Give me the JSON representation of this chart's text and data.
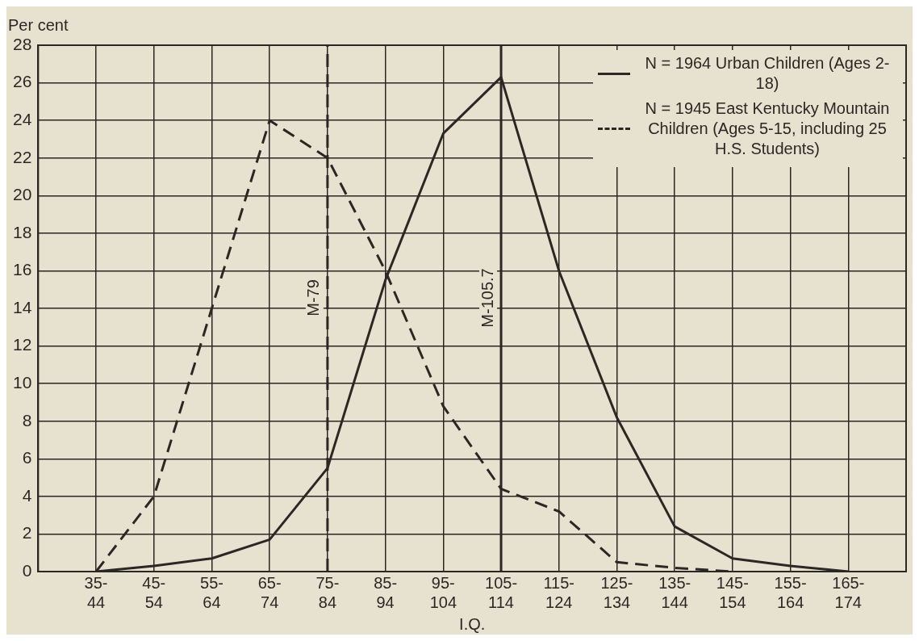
{
  "chart_data": {
    "type": "line",
    "xlabel": "I.Q.",
    "ylabel": "Per cent",
    "categories": [
      "35-44",
      "45-54",
      "55-64",
      "65-74",
      "75-84",
      "85-94",
      "95-104",
      "105-114",
      "115-124",
      "125-134",
      "135-144",
      "145-154",
      "155-164",
      "165-174"
    ],
    "ylim": [
      0,
      28
    ],
    "yticks": [
      0,
      2,
      4,
      6,
      8,
      10,
      12,
      14,
      16,
      18,
      20,
      22,
      24,
      26,
      28
    ],
    "series": [
      {
        "name": "N = 1964 Urban Children (Ages 2-18)",
        "color": "#2b2724",
        "line_style": "solid",
        "values": [
          0,
          0.3,
          0.7,
          1.7,
          5.5,
          15.5,
          23.3,
          26.3,
          16,
          8.2,
          2.4,
          0.7,
          0.3,
          0
        ]
      },
      {
        "name": "N = 1945 East Kentucky Mountain Children (Ages 5-15, including 25 H.S. Students)",
        "color": "#2b2724",
        "line_style": "dashed",
        "values": [
          0,
          4,
          14,
          24,
          22,
          16,
          8.8,
          4.4,
          3.2,
          0.5,
          0.2,
          0,
          null,
          null
        ]
      }
    ],
    "ref_lines": [
      {
        "axis": "x",
        "value": "75-84",
        "label": "M-79",
        "line_style": "dashed",
        "color": "#2b2724"
      },
      {
        "axis": "x",
        "value": "105-114",
        "label": "M-105.7",
        "line_style": "solid",
        "color": "#2b2724"
      }
    ],
    "grid": true,
    "legend": "top right",
    "marker": "none"
  }
}
